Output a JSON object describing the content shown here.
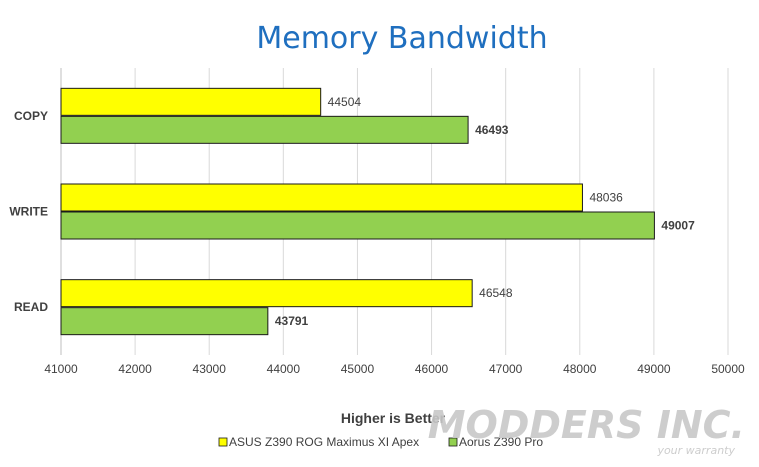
{
  "chart_data": {
    "type": "bar",
    "orientation": "horizontal",
    "title": "Memory Bandwidth",
    "xlabel": "Higher is Better",
    "ylabel": "",
    "categories": [
      "COPY",
      "WRITE",
      "READ"
    ],
    "series": [
      {
        "name": "ASUS Z390 ROG Maximus XI Apex",
        "color": "#ffff00",
        "values": [
          44504,
          48036,
          46548
        ]
      },
      {
        "name": "Aorus Z390 Pro",
        "color": "#92d050",
        "values": [
          46493,
          49007,
          43791
        ]
      }
    ],
    "xlim": [
      41000,
      50000
    ],
    "xticks": [
      41000,
      42000,
      43000,
      44000,
      45000,
      46000,
      47000,
      48000,
      49000,
      50000
    ],
    "grid": true,
    "legend_position": "bottom"
  },
  "watermark": {
    "main": "MODDERS INC.",
    "sub": "your warranty"
  }
}
